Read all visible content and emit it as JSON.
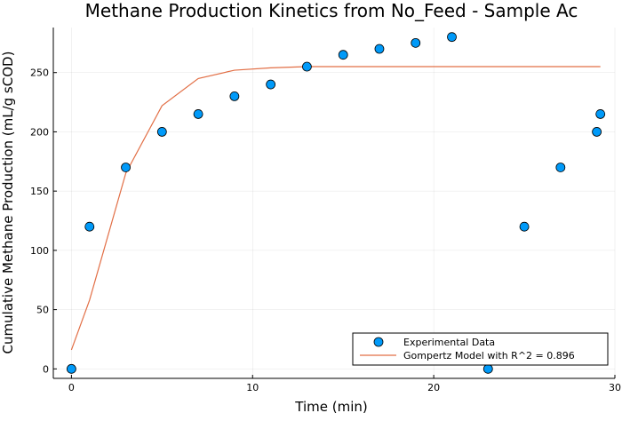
{
  "chart_data": {
    "type": "scatter",
    "title": "Methane Production Kinetics from No_Feed - Sample Ac",
    "xlabel": "Time (min)",
    "ylabel": "Cumulative Methane Production (mL/g sCOD)",
    "xlim": [
      -1,
      30
    ],
    "ylim": [
      -8,
      288
    ],
    "xticks": [
      0,
      10,
      20,
      30
    ],
    "yticks": [
      0,
      50,
      100,
      150,
      200,
      250
    ],
    "grid": true,
    "legend_position": "bottom-right",
    "series": [
      {
        "name": "Experimental Data",
        "kind": "scatter",
        "color": "#009af9",
        "x": [
          0,
          1,
          3,
          5,
          7,
          9,
          11,
          13,
          15,
          17,
          19,
          21,
          23,
          25,
          27,
          29,
          29.2
        ],
        "y": [
          0,
          120,
          170,
          200,
          215,
          230,
          240,
          255,
          265,
          270,
          275,
          280,
          0,
          120,
          170,
          200,
          215
        ]
      },
      {
        "name": "Gompertz Model with R^2 = 0.896",
        "kind": "line",
        "color": "#e26f46",
        "x": [
          0,
          1,
          3,
          5,
          7,
          9,
          11,
          13,
          15,
          17,
          19,
          21,
          23,
          25,
          27,
          29,
          29.2
        ],
        "y": [
          16,
          58,
          165,
          222,
          245,
          252,
          254,
          255,
          255,
          255,
          255,
          255,
          255,
          255,
          255,
          255,
          255
        ]
      }
    ]
  }
}
